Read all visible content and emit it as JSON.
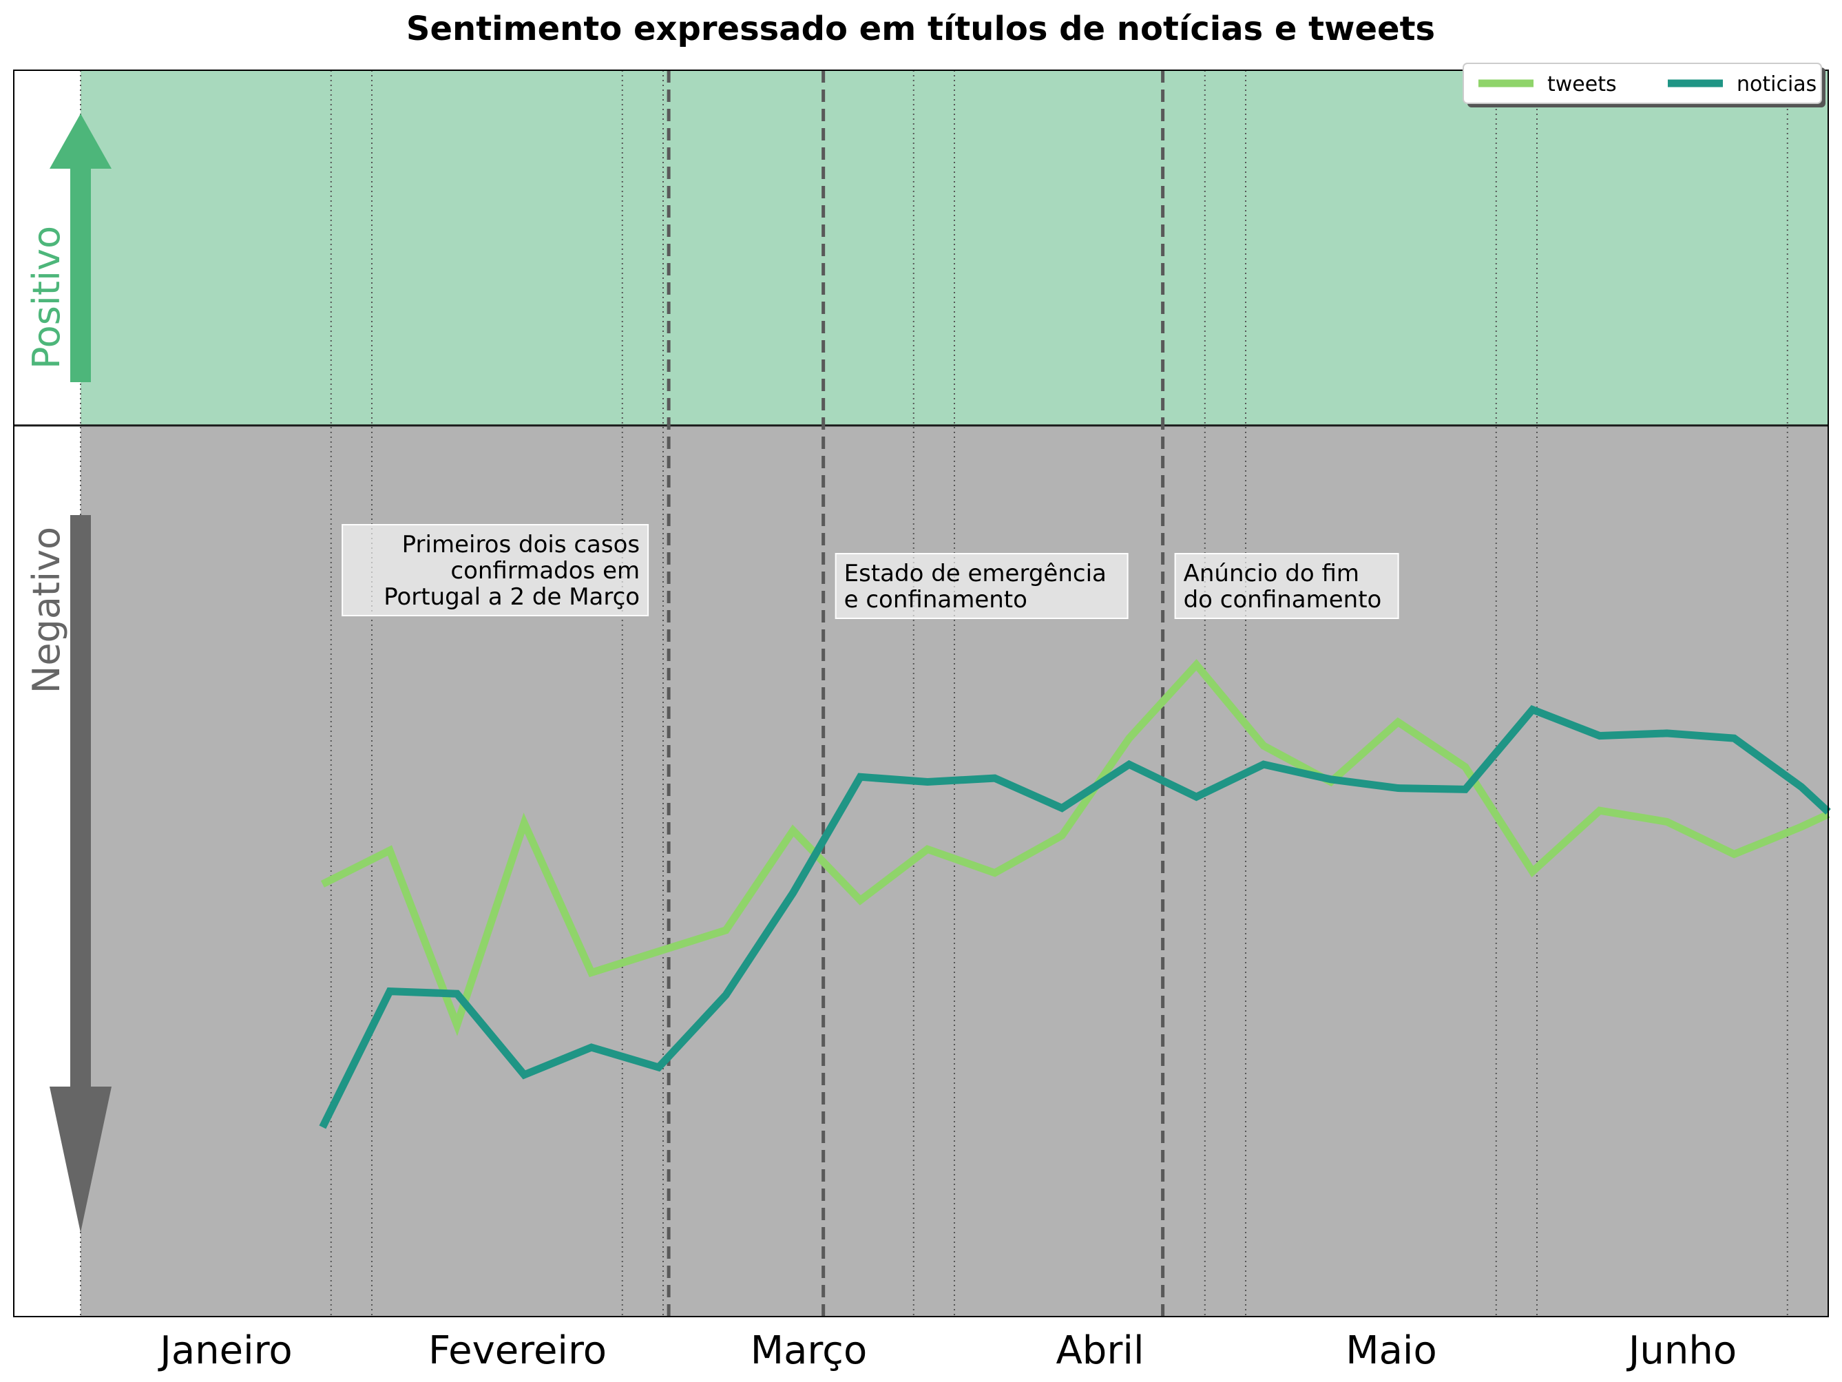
{
  "chart_data": {
    "type": "line",
    "title": "Sentimento expressado em títulos de notícias e tweets",
    "xlabel": "",
    "ylabel": "",
    "x_months": [
      "Janeiro",
      "Fevereiro",
      "Março",
      "Abril",
      "Maio",
      "Junho"
    ],
    "x_unit": "weeks since start of January",
    "xlim": [
      0,
      26
    ],
    "ylim": [
      0,
      1
    ],
    "threshold": 0.285,
    "regions": [
      {
        "name": "Positivo",
        "color": "#a8d9bd",
        "arrow_color": "#4db67a",
        "direction": "up"
      },
      {
        "name": "Negativo",
        "color": "#b3b3b3",
        "arrow_color": "#666666",
        "direction": "down"
      }
    ],
    "legend": {
      "position": "top-right",
      "columns": 2
    },
    "series": [
      {
        "name": "tweets",
        "color": "#8fd46a",
        "x": [
          3.6,
          4.6,
          5.6,
          6.6,
          7.6,
          8.6,
          9.6,
          10.6,
          11.6,
          12.6,
          13.6,
          14.6,
          15.6,
          16.6,
          17.6,
          18.6,
          19.6,
          20.6,
          21.6,
          22.6,
          23.6,
          24.6,
          25.6,
          26.0
        ],
        "y": [
          0.653,
          0.626,
          0.766,
          0.604,
          0.724,
          0.707,
          0.69,
          0.61,
          0.666,
          0.625,
          0.644,
          0.614,
          0.536,
          0.477,
          0.542,
          0.571,
          0.523,
          0.559,
          0.643,
          0.594,
          0.603,
          0.629,
          0.607,
          0.597
        ]
      },
      {
        "name": "noticias",
        "color": "#1f9585",
        "x": [
          3.6,
          4.6,
          5.6,
          6.6,
          7.6,
          8.6,
          9.6,
          10.6,
          11.6,
          12.6,
          13.6,
          14.6,
          15.6,
          16.6,
          17.6,
          18.6,
          19.6,
          20.6,
          21.6,
          22.6,
          23.6,
          24.6,
          25.6,
          26.0
        ],
        "y": [
          0.848,
          0.739,
          0.741,
          0.806,
          0.784,
          0.8,
          0.742,
          0.66,
          0.567,
          0.571,
          0.568,
          0.592,
          0.557,
          0.583,
          0.557,
          0.569,
          0.576,
          0.577,
          0.513,
          0.534,
          0.532,
          0.536,
          0.575,
          0.595
        ]
      }
    ],
    "events": [
      {
        "x": 8.75,
        "label": "Primeiros dois casos\nconfirmados em\nPortugal a 2 de Março",
        "align": "right"
      },
      {
        "x": 11.05,
        "label": "Estado de emergência\ne confinamento",
        "align": "left"
      },
      {
        "x": 16.1,
        "label": "Anúncio do fim\ndo confinamento",
        "align": "left"
      }
    ]
  }
}
